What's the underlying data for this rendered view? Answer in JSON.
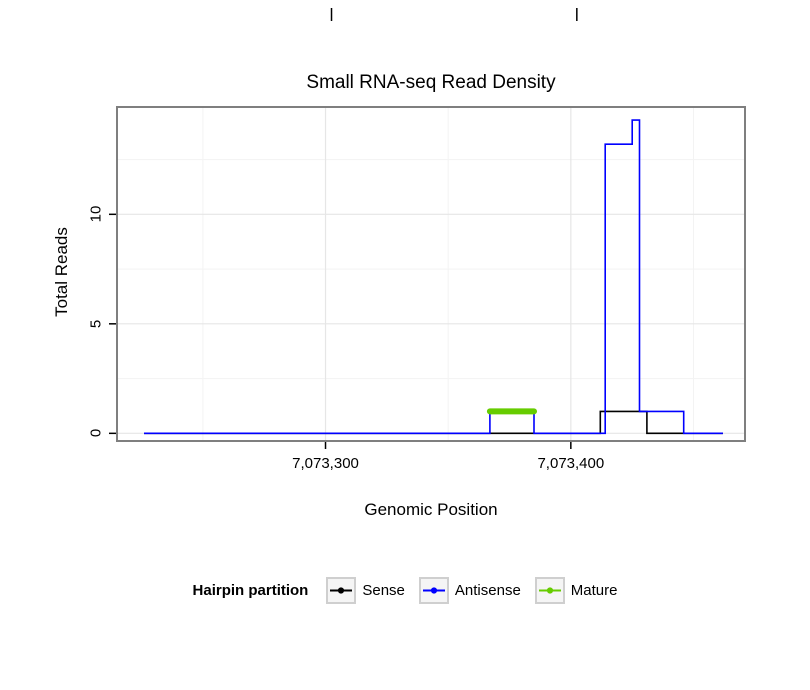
{
  "chart_data": {
    "type": "line",
    "title": "Small RNA-seq Read Density",
    "xlabel": "Genomic Position",
    "ylabel": "Total Reads",
    "xlim": [
      7073215,
      7073471
    ],
    "ylim": [
      -0.35,
      14.9
    ],
    "grid": true,
    "x_ticks": [
      {
        "value": 7073300,
        "label": "7,073,300"
      },
      {
        "value": 7073400,
        "label": "7,073,400"
      }
    ],
    "y_ticks": [
      {
        "value": 0,
        "label": "0"
      },
      {
        "value": 5,
        "label": "5"
      },
      {
        "value": 10,
        "label": "10"
      }
    ],
    "x_minor": [
      7073250,
      7073350,
      7073450
    ],
    "y_minor": [
      2.5,
      7.5,
      12.5
    ],
    "colors": {
      "sense": "#000000",
      "antisense": "#0000FF",
      "mature": "#66CC00",
      "panel_border": "#7f7f7f",
      "grid_major": "#e6e6e6",
      "grid_minor": "#f3f3f3"
    },
    "series": [
      {
        "name": "Sense",
        "color": "#000000",
        "width": 1.6,
        "points": [
          [
            7073226,
            0
          ],
          [
            7073412,
            0
          ],
          [
            7073412,
            1
          ],
          [
            7073431,
            1
          ],
          [
            7073431,
            0
          ],
          [
            7073462,
            0
          ]
        ]
      },
      {
        "name": "Antisense",
        "color": "#0000FF",
        "width": 1.6,
        "points": [
          [
            7073226,
            0
          ],
          [
            7073367,
            0
          ],
          [
            7073367,
            1
          ],
          [
            7073385,
            1
          ],
          [
            7073385,
            0
          ],
          [
            7073414,
            0
          ],
          [
            7073414,
            13.2
          ],
          [
            7073425,
            13.2
          ],
          [
            7073425,
            14.3
          ],
          [
            7073428,
            14.3
          ],
          [
            7073428,
            1
          ],
          [
            7073446,
            1
          ],
          [
            7073446,
            0
          ],
          [
            7073462,
            0
          ]
        ]
      },
      {
        "name": "Mature",
        "color": "#66CC00",
        "width": 6,
        "points": [
          [
            7073367,
            1
          ],
          [
            7073385,
            1
          ]
        ]
      }
    ],
    "legend": {
      "position": "bottom",
      "title": "Hairpin partition",
      "entries": [
        {
          "label": "Sense",
          "color": "#000000"
        },
        {
          "label": "Antisense",
          "color": "#0000FF"
        },
        {
          "label": "Mature",
          "color": "#66CC00"
        }
      ]
    }
  }
}
